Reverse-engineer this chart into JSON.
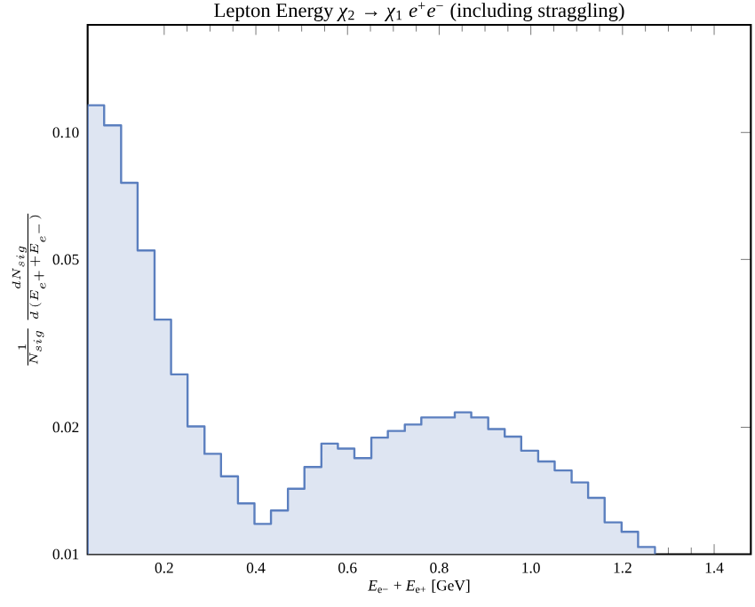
{
  "chart_data": {
    "type": "histogram",
    "title": "Lepton Energy  *χ*$_{2}$ → *χ*$_{1}$ *e*$^{+}$*e*$^{−}$ (including straggling)",
    "xlabel": "*E*$_{e−}$ + *E*$_{e+}$ [GeV]",
    "ylabel": "\\frac{1}{N_{sig}}\\,\\frac{dN_{sig}}{d\\,(E_{e^+} + E_{e^-})}",
    "bins": [
      0.033,
      0.069,
      0.106,
      0.142,
      0.179,
      0.215,
      0.251,
      0.288,
      0.324,
      0.361,
      0.397,
      0.433,
      0.47,
      0.506,
      0.543,
      0.579,
      0.615,
      0.652,
      0.688,
      0.725,
      0.761,
      0.797,
      0.834,
      0.87,
      0.907,
      0.943,
      0.979,
      1.016,
      1.052,
      1.089,
      1.125,
      1.161,
      1.198,
      1.234,
      1.271
    ],
    "values": [
      0.116,
      0.104,
      0.076,
      0.0525,
      0.036,
      0.0267,
      0.0201,
      0.0173,
      0.0153,
      0.0132,
      0.0118,
      0.0127,
      0.0143,
      0.0161,
      0.0183,
      0.0178,
      0.0169,
      0.0189,
      0.0196,
      0.0203,
      0.0211,
      0.0211,
      0.0217,
      0.0211,
      0.0198,
      0.019,
      0.0176,
      0.0166,
      0.0158,
      0.0148,
      0.0136,
      0.0119,
      0.0113,
      0.0104
    ],
    "color": "#dee5f2",
    "log": "y",
    "xlim": [
      0.033,
      1.48
    ],
    "ylim": [
      0.01,
      0.18
    ],
    "xticks": [
      0.2,
      0.4,
      0.6,
      0.8,
      {
        "value": 1.0,
        "label": "1.0"
      },
      1.2,
      1.4
    ],
    "yticks": [
      {
        "value": 0.01,
        "label": "0.01"
      },
      {
        "value": 0.02,
        "label": "0.02"
      },
      {
        "value": 0.05,
        "label": "0.05"
      },
      {
        "value": 0.1,
        "label": "0.10"
      }
    ],
    "grid": false
  }
}
